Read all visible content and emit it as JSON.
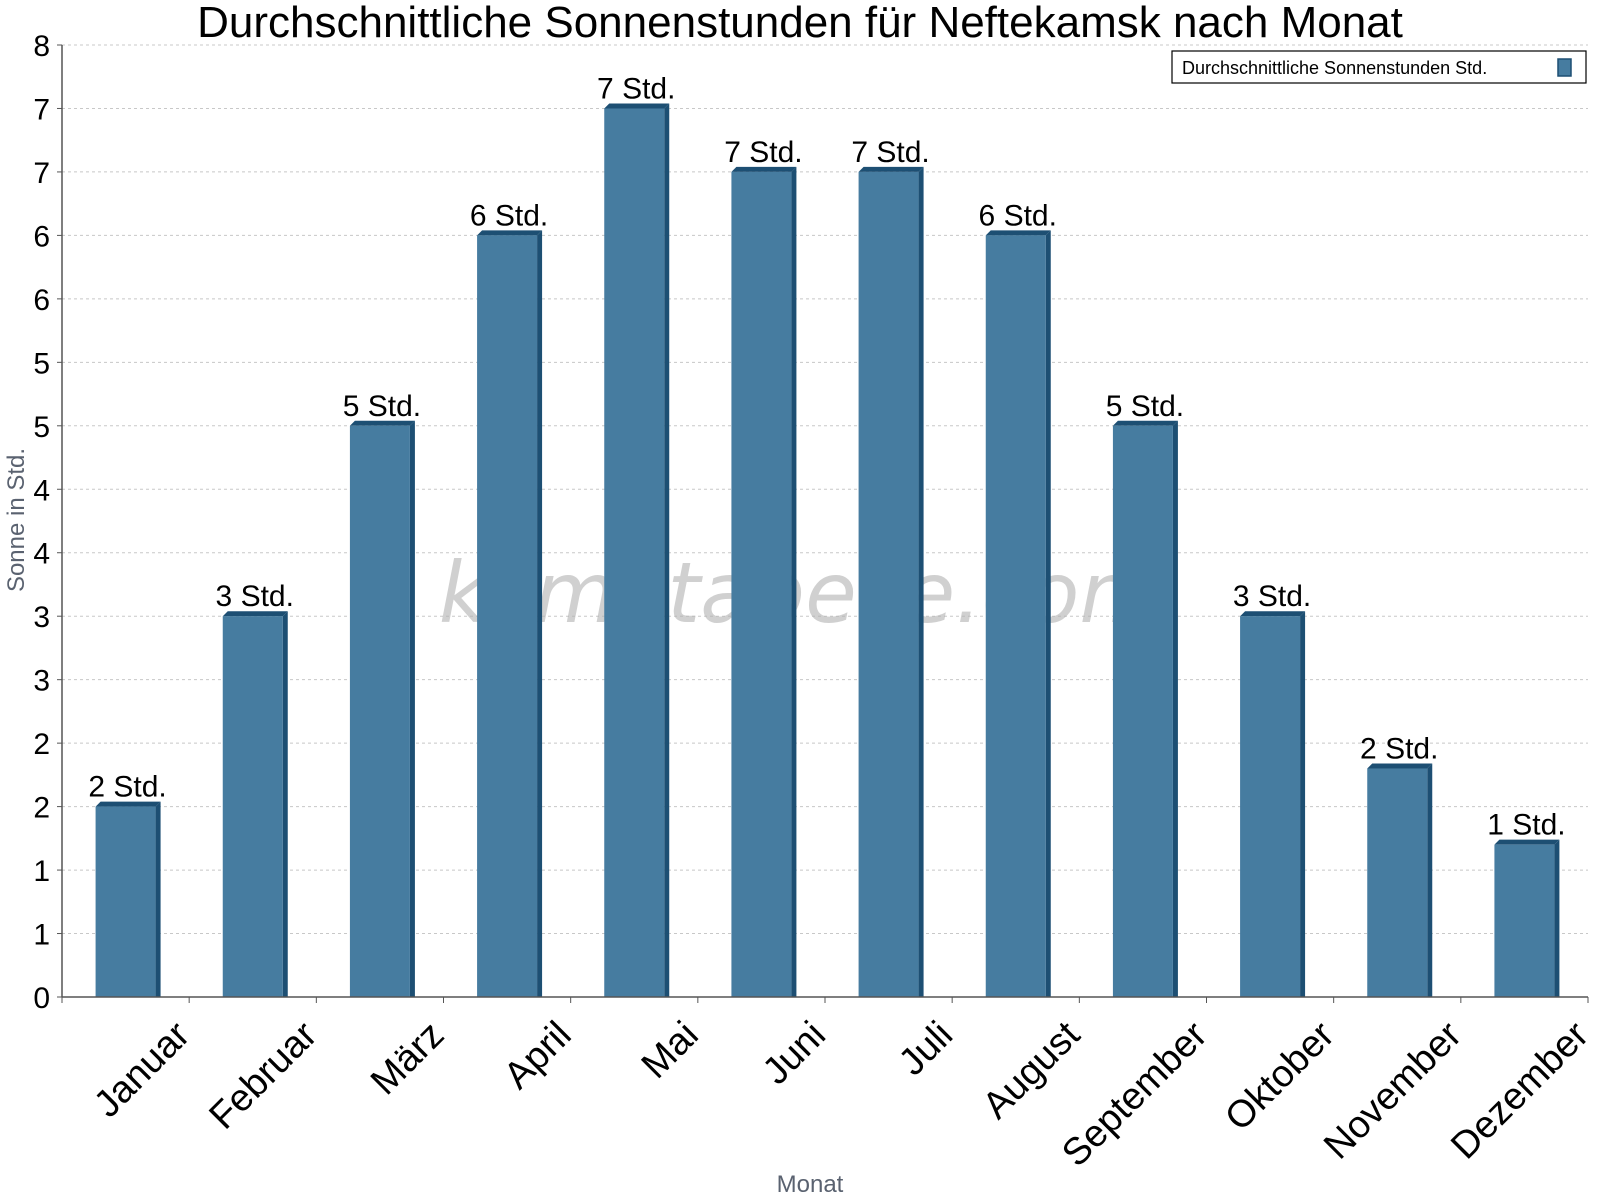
{
  "chart_data": {
    "type": "bar",
    "title": "Durchschnittliche Sonnenstunden für Neftekamsk nach Monat",
    "xlabel": "Monat",
    "ylabel": "Sonne in Std.",
    "ylim": [
      0,
      7.5
    ],
    "y_tick_labels": [
      "0",
      "1",
      "1",
      "2",
      "2",
      "3",
      "3",
      "4",
      "4",
      "5",
      "5",
      "6",
      "6",
      "7",
      "7",
      "8"
    ],
    "categories": [
      "Januar",
      "Februar",
      "März",
      "April",
      "Mai",
      "Juni",
      "Juli",
      "August",
      "September",
      "Oktober",
      "November",
      "Dezember"
    ],
    "series": [
      {
        "name": "Durchschnittliche Sonnenstunden Std.",
        "values": [
          1.5,
          3.0,
          4.5,
          6.0,
          7.0,
          6.5,
          6.5,
          6.0,
          4.5,
          3.0,
          1.8,
          1.2
        ],
        "data_labels": [
          "2 Std.",
          "3 Std.",
          "5 Std.",
          "6 Std.",
          "7 Std.",
          "7 Std.",
          "7 Std.",
          "6 Std.",
          "5 Std.",
          "3 Std.",
          "2 Std.",
          "1 Std."
        ]
      }
    ],
    "grid": true,
    "legend_position": "top-right",
    "bar_color": "#467ca0",
    "bar_side_color": "#1d4f73"
  },
  "watermark": "klimatabelle.com"
}
